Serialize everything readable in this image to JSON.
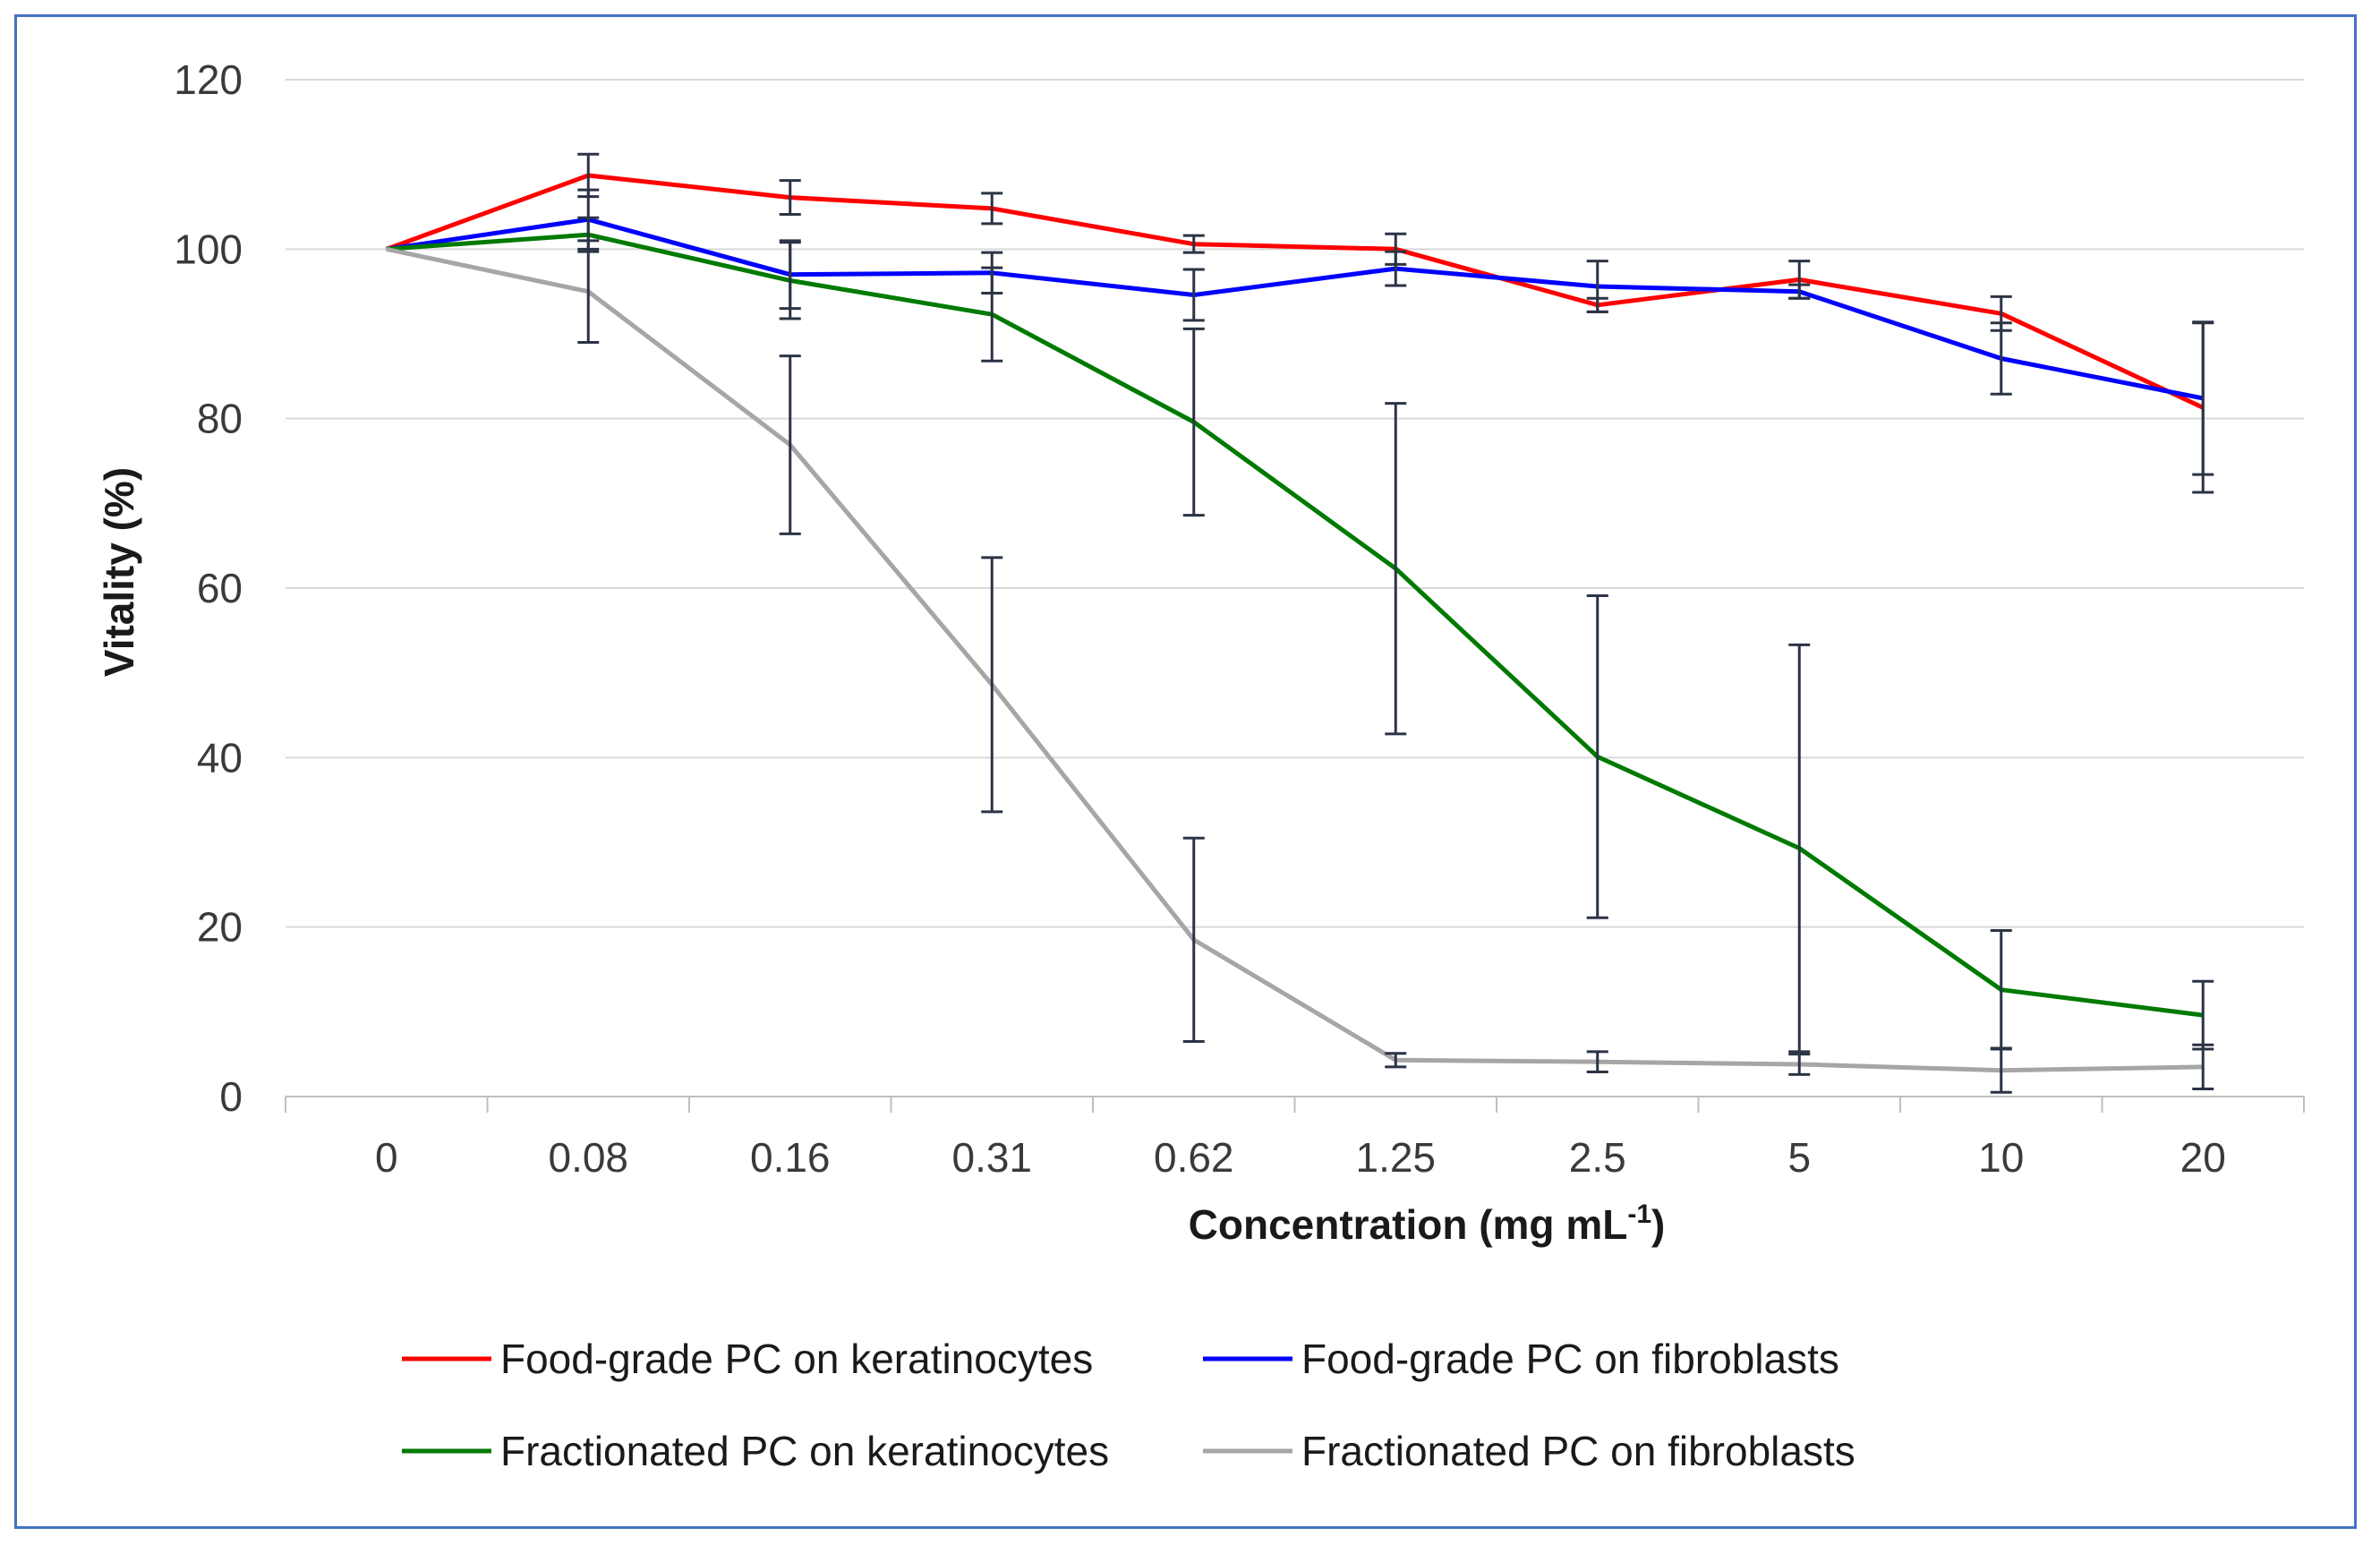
{
  "chart_data": {
    "type": "line",
    "title": "",
    "xlabel": "Concentration (mg mL",
    "xlabel_superscript": "-1",
    "xlabel_close": ")",
    "ylabel": "Vitality (%)",
    "ylim": [
      0,
      120
    ],
    "yticks": [
      0,
      20,
      40,
      60,
      80,
      100,
      120
    ],
    "categories": [
      "0",
      "0.08",
      "0.16",
      "0.31",
      "0.62",
      "1.25",
      "2.5",
      "5",
      "10",
      "20"
    ],
    "grid": true,
    "legend_position": "bottom",
    "series": [
      {
        "name": "Food-grade PC on keratinocytes",
        "color": "#ff0000",
        "values": [
          100,
          108.7,
          106.1,
          104.8,
          100.6,
          100.0,
          93.4,
          96.4,
          92.4,
          81.3
        ],
        "errors": [
          0,
          2.5,
          2.0,
          1.8,
          1.0,
          1.8,
          0.8,
          2.2,
          2.0,
          10.0
        ]
      },
      {
        "name": "Food-grade PC on fibroblasts",
        "color": "#0000ff",
        "values": [
          100,
          103.5,
          97.0,
          97.2,
          94.6,
          97.7,
          95.6,
          95.0,
          87.1,
          82.4
        ],
        "errors": [
          0,
          3.5,
          4.0,
          2.4,
          3.0,
          2.0,
          3.0,
          0.8,
          4.2,
          9.0
        ]
      },
      {
        "name": "Fractionated PC on keratinocytes",
        "color": "#007a00",
        "values": [
          100,
          101.7,
          96.3,
          92.3,
          79.6,
          62.3,
          40.1,
          29.3,
          12.6,
          9.6
        ],
        "errors": [
          0,
          2.0,
          4.5,
          5.5,
          11.0,
          19.5,
          19.0,
          24.0,
          7.0,
          4.0
        ]
      },
      {
        "name": "Fractionated PC on fibroblasts",
        "color": "#a6a6a6",
        "values": [
          100,
          95.0,
          76.9,
          48.6,
          18.5,
          4.3,
          4.1,
          3.8,
          3.1,
          3.5
        ],
        "errors": [
          0,
          6.0,
          10.5,
          15.0,
          12.0,
          0.8,
          1.2,
          1.2,
          2.6,
          2.6
        ]
      }
    ]
  }
}
